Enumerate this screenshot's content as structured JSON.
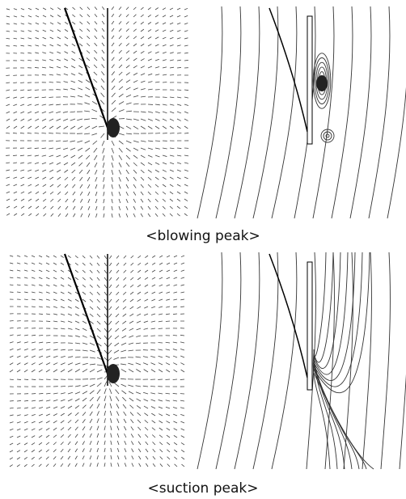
{
  "panels": [
    {
      "caption": "<blowing peak>"
    },
    {
      "caption": "<suction peak>"
    }
  ]
}
